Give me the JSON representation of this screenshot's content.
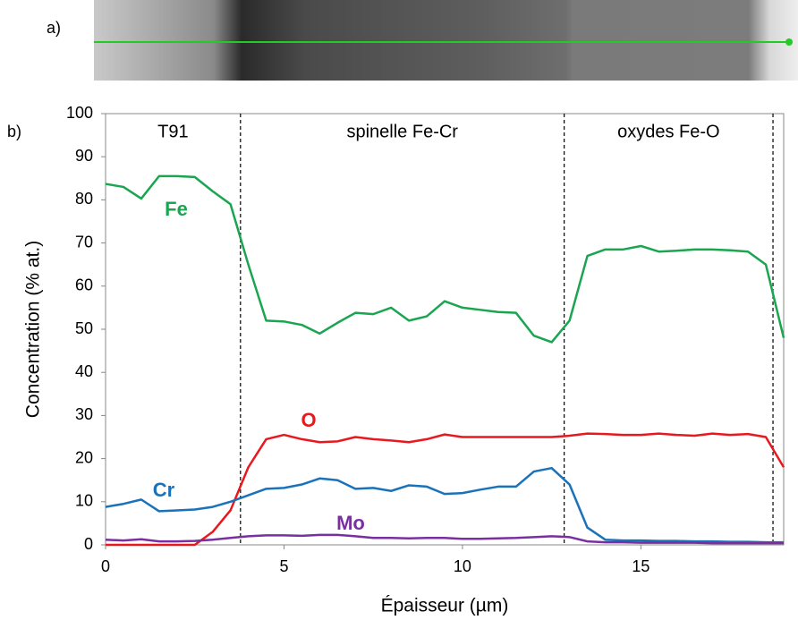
{
  "panel_labels": {
    "a": "a)",
    "b": "b)"
  },
  "chart_data": {
    "type": "line",
    "x_label": "Épaisseur (µm)",
    "y_label": "Concentration (% at.)",
    "xlim": [
      0,
      19
    ],
    "xticks": [
      0,
      5,
      10,
      15
    ],
    "ylim": [
      0,
      100
    ],
    "yticks": [
      0,
      10,
      20,
      30,
      40,
      50,
      60,
      70,
      80,
      90,
      100
    ],
    "grid": false,
    "boundaries": [
      3.78,
      12.85,
      18.7
    ],
    "zones": [
      "T91",
      "spinelle Fe-Cr",
      "oxydes Fe-O"
    ],
    "x": [
      0,
      0.5,
      1,
      1.5,
      2,
      2.5,
      3,
      3.5,
      4,
      4.5,
      5,
      5.5,
      6,
      6.5,
      7,
      7.5,
      8,
      8.5,
      9,
      9.5,
      10,
      10.5,
      11,
      11.5,
      12,
      12.5,
      13,
      13.5,
      14,
      14.5,
      15,
      15.5,
      16,
      16.5,
      17,
      17.5,
      18,
      18.5,
      19
    ],
    "series": [
      {
        "name": "Fe",
        "color": "#1aa550",
        "values": [
          83.7,
          83,
          80.3,
          85.5,
          85.5,
          85.3,
          82,
          79,
          65,
          52,
          51.8,
          51,
          49,
          51.5,
          53.8,
          53.5,
          55,
          52,
          53,
          56.5,
          55,
          54.5,
          54,
          53.8,
          48.5,
          47,
          52,
          67,
          68.5,
          68.5,
          69.3,
          68,
          68.2,
          68.5,
          68.5,
          68.3,
          68,
          65,
          48
        ]
      },
      {
        "name": "O",
        "color": "#e8191e",
        "values": [
          0,
          0,
          0,
          0,
          0,
          0,
          3,
          8,
          18,
          24.5,
          25.5,
          24.5,
          23.8,
          24,
          25,
          24.5,
          24.2,
          23.8,
          24.5,
          25.6,
          25,
          25,
          25,
          25,
          25,
          25,
          25.3,
          25.8,
          25.7,
          25.5,
          25.5,
          25.8,
          25.5,
          25.3,
          25.8,
          25.5,
          25.7,
          25,
          18
        ]
      },
      {
        "name": "Cr",
        "color": "#1a72bb",
        "values": [
          8.8,
          9.5,
          10.5,
          7.8,
          8,
          8.2,
          8.8,
          10,
          11.5,
          13,
          13.2,
          14,
          15.4,
          15,
          13,
          13.2,
          12.5,
          13.8,
          13.5,
          11.8,
          12,
          12.8,
          13.5,
          13.5,
          17,
          17.8,
          14,
          4,
          1.2,
          1,
          1,
          0.9,
          0.9,
          0.8,
          0.8,
          0.7,
          0.7,
          0.6,
          0.6
        ]
      },
      {
        "name": "Mo",
        "color": "#7a2fa0",
        "values": [
          1.2,
          1,
          1.3,
          0.8,
          0.8,
          0.9,
          1.2,
          1.6,
          2,
          2.2,
          2.2,
          2.1,
          2.3,
          2.3,
          2,
          1.6,
          1.6,
          1.5,
          1.6,
          1.6,
          1.4,
          1.4,
          1.5,
          1.6,
          1.8,
          2,
          1.8,
          0.8,
          0.6,
          0.6,
          0.5,
          0.5,
          0.5,
          0.5,
          0.4,
          0.4,
          0.4,
          0.4,
          0.4
        ]
      }
    ]
  }
}
